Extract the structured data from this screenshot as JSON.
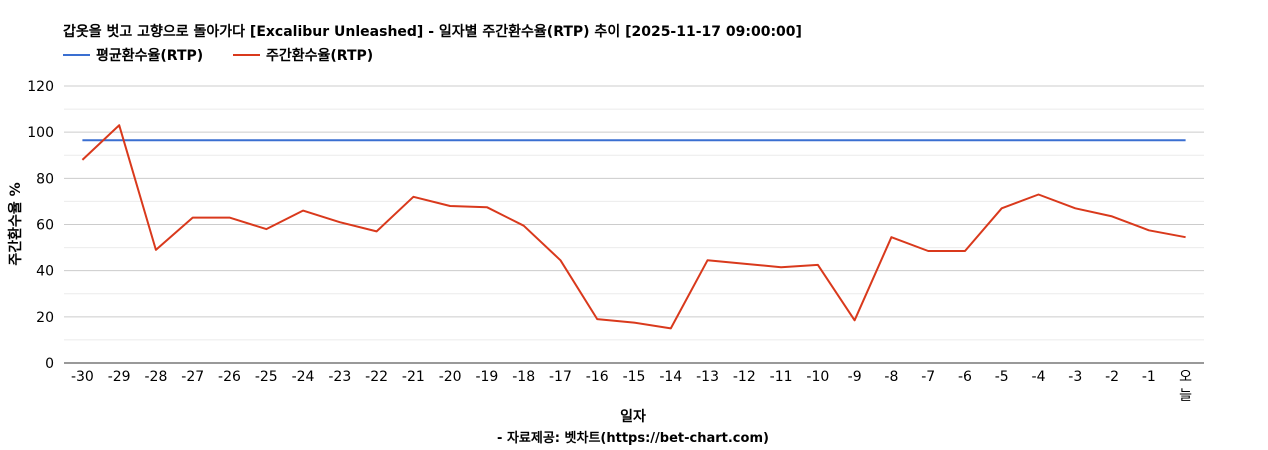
{
  "chart_data": {
    "type": "line",
    "title": "갑옷을 벗고 고향으로 돌아가다 [Excalibur Unleashed] - 일자별 주간환수율(RTP) 추이 [2025-11-17 09:00:00]",
    "xlabel": "일자",
    "ylabel": "주간환수율 %",
    "source": "- 자료제공: 벳차트(https://bet-chart.com)",
    "ylim": [
      0,
      120
    ],
    "yticks": [
      0,
      20,
      40,
      60,
      80,
      100,
      120
    ],
    "grid": true,
    "legend_position": "top-left",
    "categories": [
      "-30",
      "-29",
      "-28",
      "-27",
      "-26",
      "-25",
      "-24",
      "-23",
      "-22",
      "-21",
      "-20",
      "-19",
      "-18",
      "-17",
      "-16",
      "-15",
      "-14",
      "-13",
      "-12",
      "-11",
      "-10",
      "-9",
      "-8",
      "-7",
      "-6",
      "-5",
      "-4",
      "-3",
      "-2",
      "-1",
      "오늘"
    ],
    "series": [
      {
        "name": "평균환수율(RTP)",
        "color": "#3a6fd1",
        "values": [
          96.5,
          96.5,
          96.5,
          96.5,
          96.5,
          96.5,
          96.5,
          96.5,
          96.5,
          96.5,
          96.5,
          96.5,
          96.5,
          96.5,
          96.5,
          96.5,
          96.5,
          96.5,
          96.5,
          96.5,
          96.5,
          96.5,
          96.5,
          96.5,
          96.5,
          96.5,
          96.5,
          96.5,
          96.5,
          96.5,
          96.5
        ]
      },
      {
        "name": "주간환수율(RTP)",
        "color": "#d9391c",
        "values": [
          88,
          103,
          49,
          63,
          63,
          58,
          66,
          61,
          57,
          72,
          68,
          67.5,
          59.5,
          44.5,
          19,
          17.5,
          15,
          44.5,
          43,
          41.5,
          42.5,
          18.5,
          54.5,
          48.5,
          48.5,
          67,
          73,
          67,
          63.5,
          57.5,
          54.5
        ]
      }
    ]
  }
}
